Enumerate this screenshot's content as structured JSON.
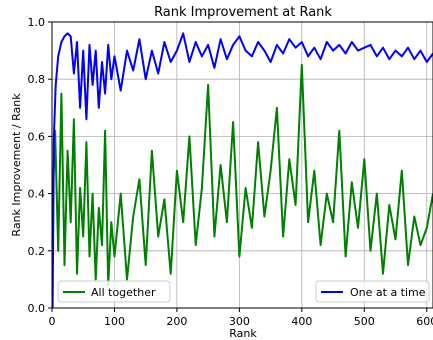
{
  "chart_data": {
    "type": "line",
    "title": "Rank Improvement at Rank",
    "xlabel": "Rank",
    "ylabel": "Rank Improvement / Rank",
    "xlim": [
      0,
      610
    ],
    "ylim": [
      0.0,
      1.0
    ],
    "xticks": [
      0,
      100,
      200,
      300,
      400,
      500,
      600
    ],
    "xtick_labels": [
      "0",
      "100",
      "200",
      "300",
      "400",
      "500",
      "600"
    ],
    "yticks": [
      0.0,
      0.2,
      0.4,
      0.6,
      0.8,
      1.0
    ],
    "ytick_labels": [
      "0.0",
      "0.2",
      "0.4",
      "0.6",
      "0.8",
      "1.0"
    ],
    "grid": true,
    "legend": [
      {
        "name": "All together",
        "color": "#008000",
        "placement": "lower-left"
      },
      {
        "name": "One at a time",
        "color": "#0000ff",
        "placement": "lower-right"
      }
    ],
    "series": [
      {
        "name": "All together",
        "color": "#008000",
        "x": [
          1,
          5,
          10,
          15,
          20,
          25,
          30,
          35,
          40,
          45,
          50,
          55,
          60,
          65,
          70,
          75,
          80,
          85,
          90,
          95,
          100,
          110,
          120,
          130,
          140,
          150,
          160,
          170,
          180,
          190,
          200,
          210,
          220,
          230,
          240,
          250,
          260,
          270,
          280,
          290,
          300,
          310,
          320,
          330,
          340,
          350,
          360,
          370,
          380,
          390,
          400,
          410,
          420,
          430,
          440,
          450,
          460,
          470,
          480,
          490,
          500,
          510,
          520,
          530,
          540,
          550,
          560,
          570,
          580,
          590,
          600,
          610
        ],
        "y": [
          0.36,
          0.62,
          0.2,
          0.75,
          0.15,
          0.55,
          0.3,
          0.66,
          0.12,
          0.42,
          0.25,
          0.58,
          0.18,
          0.4,
          0.1,
          0.35,
          0.22,
          0.62,
          0.08,
          0.3,
          0.18,
          0.4,
          0.1,
          0.32,
          0.45,
          0.15,
          0.55,
          0.25,
          0.38,
          0.12,
          0.48,
          0.3,
          0.6,
          0.22,
          0.42,
          0.78,
          0.25,
          0.5,
          0.3,
          0.65,
          0.18,
          0.42,
          0.28,
          0.58,
          0.32,
          0.48,
          0.7,
          0.25,
          0.52,
          0.36,
          0.85,
          0.3,
          0.48,
          0.22,
          0.4,
          0.3,
          0.62,
          0.18,
          0.44,
          0.28,
          0.52,
          0.2,
          0.4,
          0.12,
          0.36,
          0.24,
          0.48,
          0.15,
          0.32,
          0.22,
          0.28,
          0.4
        ]
      },
      {
        "name": "One at a time",
        "color": "#0000ff",
        "x": [
          1,
          3,
          6,
          10,
          15,
          20,
          25,
          30,
          35,
          40,
          45,
          50,
          55,
          60,
          65,
          70,
          75,
          80,
          85,
          90,
          95,
          100,
          110,
          120,
          130,
          140,
          150,
          160,
          170,
          180,
          190,
          200,
          210,
          220,
          230,
          240,
          250,
          260,
          270,
          280,
          290,
          300,
          310,
          320,
          330,
          340,
          350,
          360,
          370,
          380,
          390,
          400,
          410,
          420,
          430,
          440,
          450,
          460,
          470,
          480,
          490,
          500,
          510,
          520,
          530,
          540,
          550,
          560,
          570,
          580,
          590,
          600,
          610
        ],
        "y": [
          0.0,
          0.6,
          0.78,
          0.88,
          0.93,
          0.95,
          0.96,
          0.95,
          0.82,
          0.93,
          0.7,
          0.9,
          0.66,
          0.92,
          0.78,
          0.9,
          0.7,
          0.86,
          0.75,
          0.92,
          0.8,
          0.88,
          0.76,
          0.9,
          0.83,
          0.94,
          0.8,
          0.9,
          0.82,
          0.93,
          0.86,
          0.9,
          0.96,
          0.86,
          0.93,
          0.88,
          0.92,
          0.84,
          0.94,
          0.87,
          0.92,
          0.95,
          0.9,
          0.88,
          0.93,
          0.9,
          0.86,
          0.92,
          0.89,
          0.94,
          0.91,
          0.93,
          0.88,
          0.91,
          0.87,
          0.93,
          0.9,
          0.92,
          0.89,
          0.93,
          0.9,
          0.91,
          0.92,
          0.88,
          0.91,
          0.87,
          0.9,
          0.88,
          0.91,
          0.87,
          0.9,
          0.86,
          0.89
        ]
      }
    ]
  }
}
